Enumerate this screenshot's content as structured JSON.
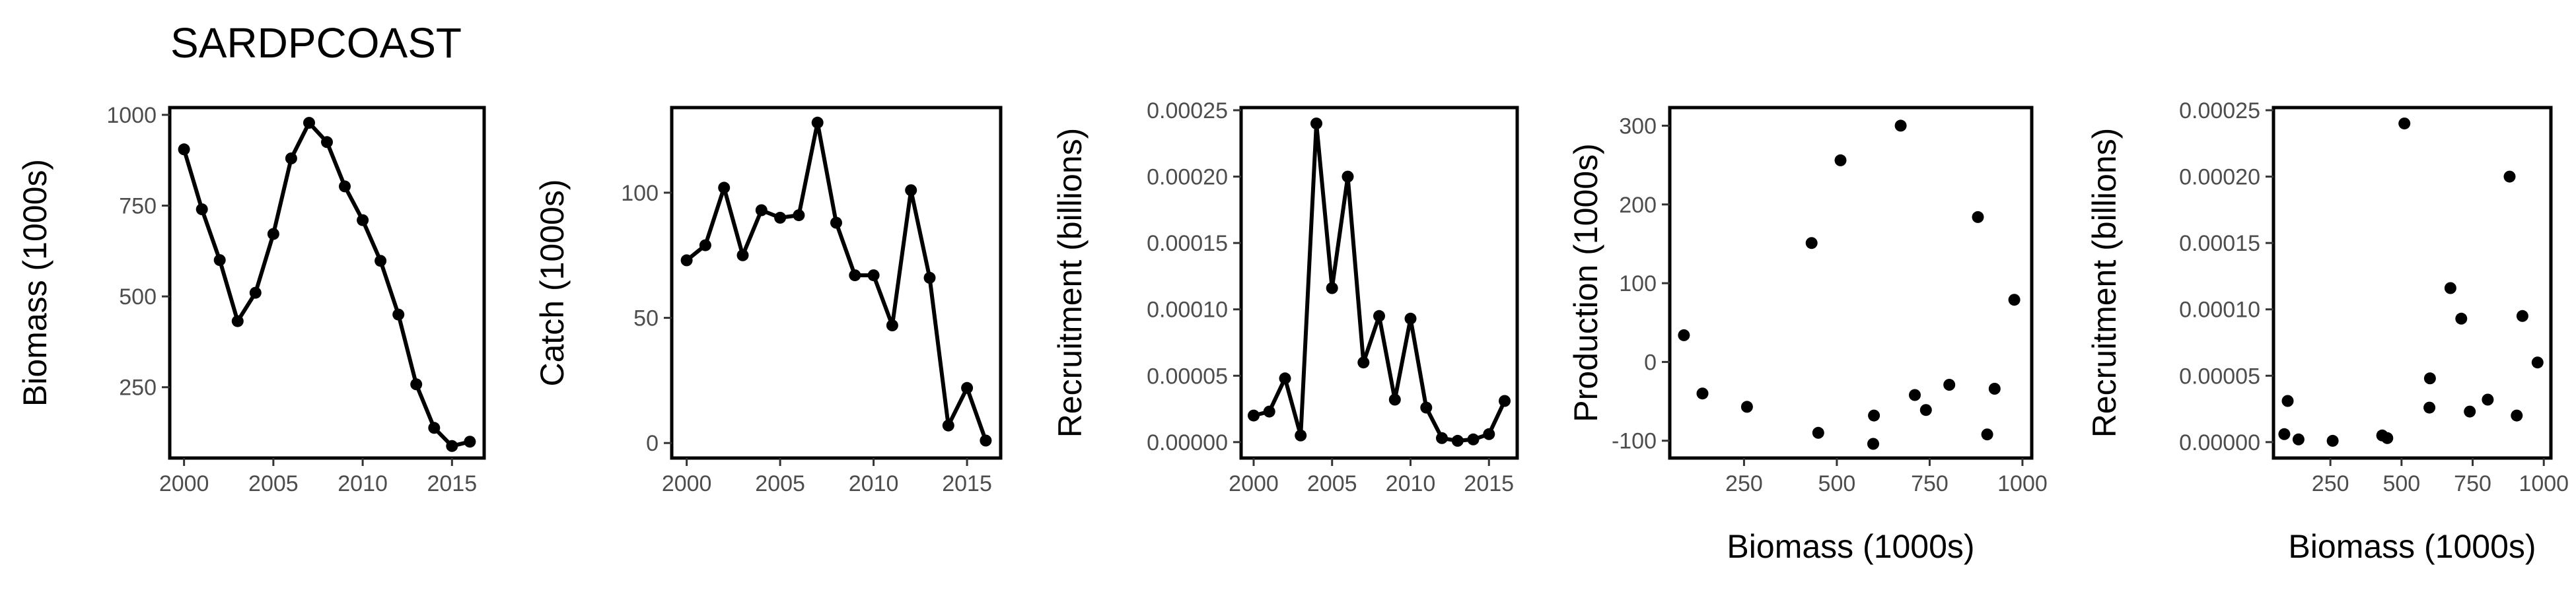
{
  "figure": {
    "title": "SARDPCOAST"
  },
  "style": {
    "line_color": "#000000",
    "tick_label_color": "#4d4d4d",
    "background": "#ffffff"
  },
  "chart_data": [
    {
      "id": "biomass",
      "type": "line",
      "title": "",
      "xlabel": "",
      "ylabel": "Biomass (1000s)",
      "xlim": [
        1999.2,
        2016.8
      ],
      "ylim": [
        55,
        1020
      ],
      "xticks": [
        2000,
        2005,
        2010,
        2015
      ],
      "xtick_labels": [
        "2000",
        "2005",
        "2010",
        "2015"
      ],
      "yticks": [
        250,
        500,
        750,
        1000
      ],
      "ytick_labels": [
        "250",
        "500",
        "750",
        "1000"
      ],
      "grid": false,
      "markers": true,
      "x": [
        2000,
        2001,
        2002,
        2003,
        2004,
        2005,
        2006,
        2007,
        2008,
        2009,
        2010,
        2011,
        2012,
        2013,
        2014,
        2015,
        2016
      ],
      "y": [
        905,
        740,
        600,
        432,
        510,
        672,
        880,
        978,
        925,
        803,
        710,
        598,
        450,
        258,
        138,
        88,
        100
      ]
    },
    {
      "id": "catch",
      "type": "line",
      "title": "",
      "xlabel": "",
      "ylabel": "Catch (1000s)",
      "xlim": [
        1999.2,
        2016.8
      ],
      "ylim": [
        -6,
        134
      ],
      "xticks": [
        2000,
        2005,
        2010,
        2015
      ],
      "xtick_labels": [
        "2000",
        "2005",
        "2010",
        "2015"
      ],
      "yticks": [
        0,
        50,
        100
      ],
      "ytick_labels": [
        "0",
        "50",
        "100"
      ],
      "grid": false,
      "markers": true,
      "x": [
        2000,
        2001,
        2002,
        2003,
        2004,
        2005,
        2006,
        2007,
        2008,
        2009,
        2010,
        2011,
        2012,
        2013,
        2014,
        2015,
        2016
      ],
      "y": [
        73,
        79,
        102,
        75,
        93,
        90,
        91,
        128,
        88,
        67,
        67,
        47,
        101,
        66,
        7,
        22,
        1
      ]
    },
    {
      "id": "recruitment",
      "type": "line",
      "title": "",
      "xlabel": "",
      "ylabel": "Recruitment (billions)",
      "xlim": [
        1999.2,
        2016.8
      ],
      "ylim": [
        -1.2e-05,
        0.000252
      ],
      "xticks": [
        2000,
        2005,
        2010,
        2015
      ],
      "xtick_labels": [
        "2000",
        "2005",
        "2010",
        "2015"
      ],
      "yticks": [
        0,
        5e-05,
        0.0001,
        0.00015,
        0.0002,
        0.00025
      ],
      "ytick_labels": [
        "0.00000",
        "0.00005",
        "0.00010",
        "0.00015",
        "0.00020",
        "0.00025"
      ],
      "grid": false,
      "markers": true,
      "x": [
        2000,
        2001,
        2002,
        2003,
        2004,
        2005,
        2006,
        2007,
        2008,
        2009,
        2010,
        2011,
        2012,
        2013,
        2014,
        2015,
        2016
      ],
      "y": [
        2e-05,
        2.3e-05,
        4.8e-05,
        5e-06,
        0.00024,
        0.000116,
        0.0002,
        6e-05,
        9.5e-05,
        3.2e-05,
        9.3e-05,
        2.6e-05,
        3e-06,
        1e-06,
        2e-06,
        6e-06,
        3.1e-05
      ]
    },
    {
      "id": "production",
      "type": "scatter",
      "title": "",
      "xlabel": "Biomass (1000s)",
      "ylabel": "Production (1000s)",
      "xlim": [
        50,
        1025
      ],
      "ylim": [
        -122,
        323
      ],
      "xticks": [
        250,
        500,
        750,
        1000
      ],
      "xtick_labels": [
        "250",
        "500",
        "750",
        "1000"
      ],
      "yticks": [
        -100,
        0,
        100,
        200,
        300
      ],
      "ytick_labels": [
        "-100",
        "0",
        "100",
        "200",
        "300"
      ],
      "grid": false,
      "x": [
        88,
        138,
        258,
        450,
        510,
        598,
        600,
        672,
        710,
        740,
        803,
        880,
        905,
        925,
        978,
        432
      ],
      "y": [
        34,
        -40,
        -57,
        -90,
        256,
        -104,
        -68,
        300,
        -42,
        -61,
        -29,
        184,
        -92,
        -34,
        79,
        151
      ]
    },
    {
      "id": "recruitment-vs-biomass",
      "type": "scatter",
      "title": "",
      "xlabel": "Biomass (1000s)",
      "ylabel": "Recruitment (billions)",
      "xlim": [
        50,
        1025
      ],
      "ylim": [
        -1.2e-05,
        0.000252
      ],
      "xticks": [
        250,
        500,
        750,
        1000
      ],
      "xtick_labels": [
        "250",
        "500",
        "750",
        "1000"
      ],
      "yticks": [
        0,
        5e-05,
        0.0001,
        0.00015,
        0.0002,
        0.00025
      ],
      "ytick_labels": [
        "0.00000",
        "0.00005",
        "0.00010",
        "0.00015",
        "0.00020",
        "0.00025"
      ],
      "grid": false,
      "x": [
        88,
        100,
        138,
        258,
        432,
        450,
        510,
        598,
        600,
        672,
        710,
        740,
        803,
        880,
        905,
        925,
        978
      ],
      "y": [
        6e-06,
        3.1e-05,
        2e-06,
        1e-06,
        5e-06,
        3e-06,
        0.00024,
        2.6e-05,
        4.8e-05,
        0.000116,
        9.3e-05,
        2.3e-05,
        3.2e-05,
        0.0002,
        2e-05,
        9.5e-05,
        6e-05
      ]
    }
  ]
}
